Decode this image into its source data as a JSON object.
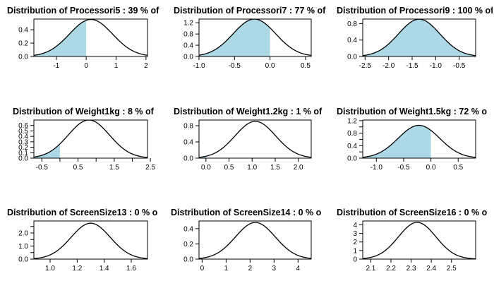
{
  "colors": {
    "fill": "#add8e6",
    "curve": "#000000",
    "frame": "#000000"
  },
  "chart_data": [
    {
      "type": "area",
      "title": "Distribution of Processori5 : 39 % of",
      "mean": 0.16,
      "sd": 0.72,
      "shade_below": 0,
      "xlim": [
        -1.75,
        2.05
      ],
      "ylim": [
        0,
        0.56
      ],
      "xticks": [
        -1,
        0,
        1,
        2
      ],
      "xtick_labels": [
        "-1",
        "0",
        "1",
        "2"
      ],
      "yticks": [
        0,
        0.2,
        0.4
      ],
      "ytick_labels": [
        "0.0",
        "0.2",
        "0.4"
      ]
    },
    {
      "type": "area",
      "title": "Distribution of Processori7 : 77 % of",
      "mean": -0.22,
      "sd": 0.3,
      "shade_below": 0,
      "xlim": [
        -1.0,
        0.58
      ],
      "ylim": [
        0,
        1.33
      ],
      "xticks": [
        -1.0,
        -0.5,
        0.0,
        0.5
      ],
      "xtick_labels": [
        "-1.0",
        "-0.5",
        "0.0",
        "0.5"
      ],
      "yticks": [
        0,
        0.4,
        0.8,
        1.2
      ],
      "ytick_labels": [
        "0.0",
        "0.4",
        "0.8",
        "1.2"
      ]
    },
    {
      "type": "area",
      "title": "Distribution of Processori9 : 100 % of",
      "mean": -1.35,
      "sd": 0.44,
      "shade_below": 0,
      "xlim": [
        -2.55,
        -0.15
      ],
      "ylim": [
        0,
        0.91
      ],
      "xticks": [
        -2.5,
        -2.0,
        -1.5,
        -1.0,
        -0.5
      ],
      "xtick_labels": [
        "-2.5",
        "-2.0",
        "-1.5",
        "-1.0",
        "-0.5"
      ],
      "yticks": [
        0,
        0.4,
        0.8
      ],
      "ytick_labels": [
        "0.0",
        "0.4",
        "0.8"
      ]
    },
    {
      "type": "area",
      "title": "Distribution of Weight1kg : 8 % of",
      "mean": 0.8,
      "sd": 0.57,
      "shade_below": 0,
      "xlim": [
        -0.72,
        2.42
      ],
      "ylim": [
        0,
        0.7
      ],
      "xticks": [
        -0.5,
        0.0,
        0.5,
        1.0,
        1.5,
        2.0,
        2.5
      ],
      "xtick_labels": [
        "-0.5",
        "",
        "0.5",
        "",
        "1.5",
        "",
        "2.5"
      ],
      "yticks": [
        0,
        0.1,
        0.2,
        0.3,
        0.4,
        0.5,
        0.6
      ],
      "ytick_labels": [
        "0.0",
        "0.1",
        "0.2",
        "0.3",
        "0.4",
        "0.5",
        "0.6"
      ]
    },
    {
      "type": "area",
      "title": "Distribution of Weight1.2kg : 1 % of",
      "mean": 1.07,
      "sd": 0.44,
      "shade_below": 0,
      "xlim": [
        -0.15,
        2.28
      ],
      "ylim": [
        0,
        0.94
      ],
      "xticks": [
        0.0,
        0.5,
        1.0,
        1.5,
        2.0
      ],
      "xtick_labels": [
        "0.0",
        "0.5",
        "1.0",
        "1.5",
        "2.0"
      ],
      "yticks": [
        0,
        0.4,
        0.8
      ],
      "ytick_labels": [
        "0.0",
        "0.4",
        "0.8"
      ]
    },
    {
      "type": "area",
      "title": "Distribution of Weight1.5kg : 72 % o",
      "mean": -0.22,
      "sd": 0.38,
      "shade_below": 0,
      "xlim": [
        -1.25,
        0.82
      ],
      "ylim": [
        0,
        1.22
      ],
      "xticks": [
        -1.0,
        -0.5,
        0.0,
        0.5
      ],
      "xtick_labels": [
        "-1.0",
        "-0.5",
        "0.0",
        "0.5"
      ],
      "yticks": [
        0,
        0.2,
        0.4,
        0.6,
        0.8,
        1.0,
        1.2
      ],
      "ytick_labels": [
        "0.0",
        "",
        "0.4",
        "",
        "0.8",
        "",
        "1.2"
      ]
    },
    {
      "type": "area",
      "title": "Distribution of ScreenSize13 : 0 % o",
      "mean": 1.3,
      "sd": 0.145,
      "shade_below": 0,
      "xlim": [
        0.88,
        1.72
      ],
      "ylim": [
        0,
        2.92
      ],
      "xticks": [
        1.0,
        1.2,
        1.4,
        1.6
      ],
      "xtick_labels": [
        "1.0",
        "1.2",
        "1.4",
        "1.6"
      ],
      "yticks": [
        0,
        0.5,
        1.0,
        1.5,
        2.0,
        2.5
      ],
      "ytick_labels": [
        "0.0",
        "",
        "1.0",
        "",
        "2.0",
        ""
      ]
    },
    {
      "type": "area",
      "title": "Distribution of ScreenSize14 : 0 % o",
      "mean": 2.22,
      "sd": 0.83,
      "shade_below": 0,
      "xlim": [
        -0.13,
        4.55
      ],
      "ylim": [
        0,
        0.5
      ],
      "xticks": [
        0,
        1,
        2,
        3,
        4
      ],
      "xtick_labels": [
        "0",
        "1",
        "2",
        "3",
        "4"
      ],
      "yticks": [
        0,
        0.2,
        0.4
      ],
      "ytick_labels": [
        "0.0",
        "0.2",
        "0.4"
      ]
    },
    {
      "type": "area",
      "title": "Distribution of ScreenSize16 : 0 % o",
      "mean": 2.33,
      "sd": 0.093,
      "shade_below": 0,
      "xlim": [
        2.06,
        2.62
      ],
      "ylim": [
        0,
        4.45
      ],
      "xticks": [
        2.1,
        2.2,
        2.3,
        2.4,
        2.5
      ],
      "xtick_labels": [
        "2.1",
        "2.2",
        "2.3",
        "2.4",
        "2.5"
      ],
      "yticks": [
        0,
        1,
        2,
        3,
        4
      ],
      "ytick_labels": [
        "0",
        "1",
        "2",
        "3",
        "4"
      ]
    }
  ]
}
